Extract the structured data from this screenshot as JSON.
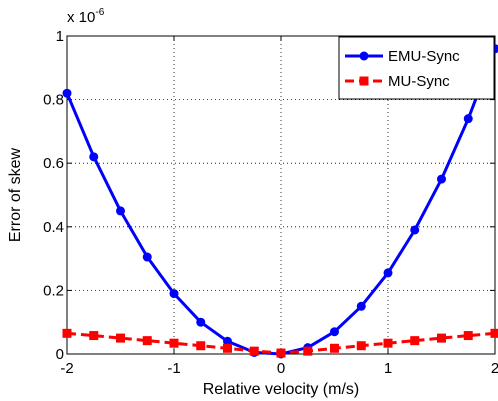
{
  "chart_data": {
    "type": "line",
    "title": "",
    "xlabel": "Relative velocity (m/s)",
    "ylabel": "Error of skew",
    "y_multiplier": "x 10",
    "y_multiplier_exp": "-6",
    "xlim": [
      -2,
      2
    ],
    "ylim": [
      0,
      1
    ],
    "xticks": [
      -2,
      -1,
      0,
      1,
      2
    ],
    "xtick_labels": [
      "-2",
      "-1",
      "0",
      "1",
      "2"
    ],
    "yticks": [
      0,
      0.2,
      0.4,
      0.6,
      0.8,
      1
    ],
    "ytick_labels": [
      "0",
      "0.2",
      "0.4",
      "0.6",
      "0.8",
      "1"
    ],
    "grid": true,
    "legend_position": "top-right",
    "x": [
      -2,
      -1.75,
      -1.5,
      -1.25,
      -1,
      -0.75,
      -0.5,
      -0.25,
      0,
      0.25,
      0.5,
      0.75,
      1,
      1.25,
      1.5,
      1.75,
      2
    ],
    "series": [
      {
        "name": "EMU-Sync",
        "color": "#0000ff",
        "line_style": "solid",
        "marker": "circle",
        "values": [
          0.82,
          0.62,
          0.45,
          0.305,
          0.19,
          0.1,
          0.04,
          0.005,
          0.0,
          0.02,
          0.07,
          0.15,
          0.255,
          0.39,
          0.55,
          0.74,
          0.96
        ]
      },
      {
        "name": "MU-Sync",
        "color": "#ff0000",
        "line_style": "dashed",
        "marker": "square",
        "values": [
          0.065,
          0.058,
          0.05,
          0.042,
          0.034,
          0.026,
          0.018,
          0.009,
          0.003,
          0.009,
          0.018,
          0.026,
          0.034,
          0.042,
          0.05,
          0.058,
          0.065
        ]
      }
    ]
  }
}
